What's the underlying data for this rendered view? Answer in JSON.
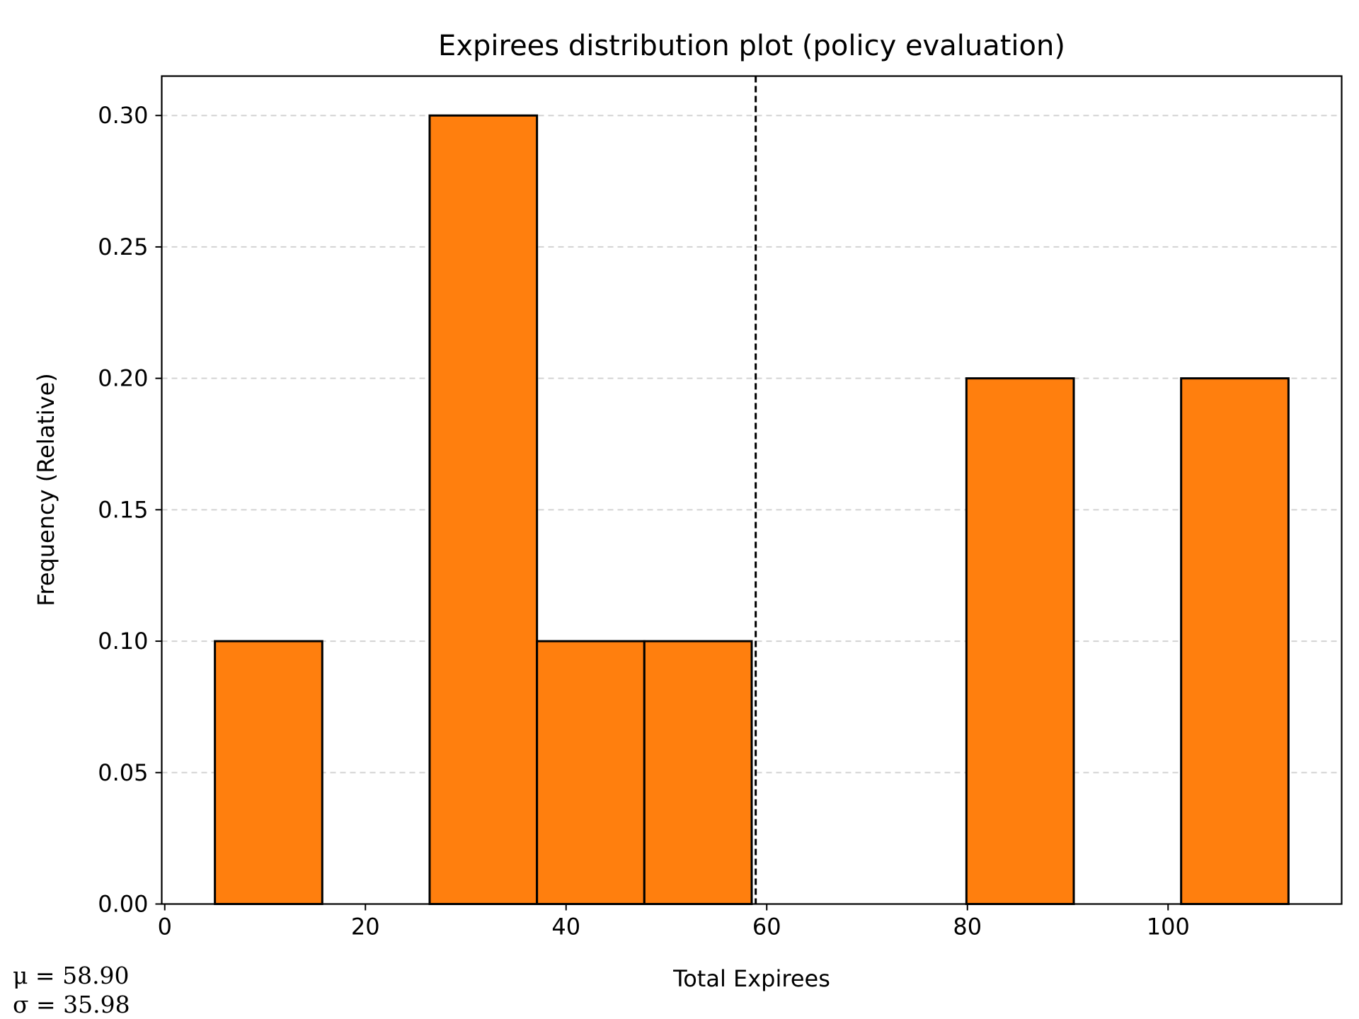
{
  "chart_data": {
    "type": "bar",
    "title": "Expirees distribution plot (policy evaluation)",
    "xlabel": "Total Expirees",
    "ylabel": "Frequency (Relative)",
    "xlim": [
      -0.3,
      117.3
    ],
    "ylim": [
      0,
      0.315
    ],
    "x_ticks": [
      0,
      20,
      40,
      60,
      80,
      100
    ],
    "y_ticks": [
      0.0,
      0.05,
      0.1,
      0.15,
      0.2,
      0.25,
      0.3
    ],
    "x_tick_labels": [
      "0",
      "20",
      "40",
      "60",
      "80",
      "100"
    ],
    "y_tick_labels": [
      "0.00",
      "0.05",
      "0.10",
      "0.15",
      "0.20",
      "0.25",
      "0.30"
    ],
    "grid": "horizontal-dashed",
    "bin_edges": [
      5.0,
      15.7,
      26.4,
      37.1,
      47.8,
      58.5,
      69.2,
      79.9,
      90.6,
      101.3,
      112.0
    ],
    "values": [
      0.1,
      0.0,
      0.3,
      0.1,
      0.1,
      0.0,
      0.0,
      0.2,
      0.0,
      0.2
    ],
    "mean_line": 58.9,
    "annotations": {
      "mean": "μ = 58.90",
      "std": "σ = 35.98"
    },
    "colors": {
      "bar_fill": "#ff7f0e",
      "bar_edge": "#000000",
      "grid": "#d3d3d3",
      "mean_line": "#000000"
    }
  }
}
